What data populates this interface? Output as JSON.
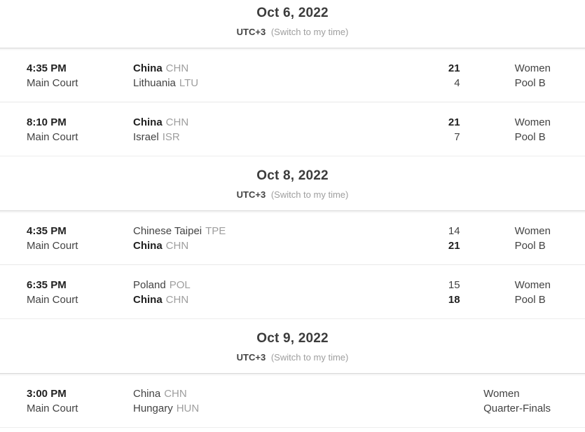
{
  "colors": {
    "text_primary": "#212121",
    "text_secondary": "#424242",
    "text_muted": "#9e9e9e",
    "divider": "#e0e0e0"
  },
  "sections": [
    {
      "date": "Oct 6, 2022",
      "timezone": "UTC+3",
      "switch_time_label": "(Switch to my time)",
      "matches": [
        {
          "time": "4:35 PM",
          "venue": "Main Court",
          "team1": {
            "name": "China",
            "code": "CHN",
            "score": "21",
            "winner": true
          },
          "team2": {
            "name": "Lithuania",
            "code": "LTU",
            "score": "4",
            "winner": false
          },
          "gender": "Women",
          "round": "Pool B"
        },
        {
          "time": "8:10 PM",
          "venue": "Main Court",
          "team1": {
            "name": "China",
            "code": "CHN",
            "score": "21",
            "winner": true
          },
          "team2": {
            "name": "Israel",
            "code": "ISR",
            "score": "7",
            "winner": false
          },
          "gender": "Women",
          "round": "Pool B"
        }
      ]
    },
    {
      "date": "Oct 8, 2022",
      "timezone": "UTC+3",
      "switch_time_label": "(Switch to my time)",
      "matches": [
        {
          "time": "4:35 PM",
          "venue": "Main Court",
          "team1": {
            "name": "Chinese Taipei",
            "code": "TPE",
            "score": "14",
            "winner": false
          },
          "team2": {
            "name": "China",
            "code": "CHN",
            "score": "21",
            "winner": true
          },
          "gender": "Women",
          "round": "Pool B"
        },
        {
          "time": "6:35 PM",
          "venue": "Main Court",
          "team1": {
            "name": "Poland",
            "code": "POL",
            "score": "15",
            "winner": false
          },
          "team2": {
            "name": "China",
            "code": "CHN",
            "score": "18",
            "winner": true
          },
          "gender": "Women",
          "round": "Pool B"
        }
      ]
    },
    {
      "date": "Oct 9, 2022",
      "timezone": "UTC+3",
      "switch_time_label": "(Switch to my time)",
      "matches": [
        {
          "time": "3:00 PM",
          "venue": "Main Court",
          "team1": {
            "name": "China",
            "code": "CHN"
          },
          "team2": {
            "name": "Hungary",
            "code": "HUN"
          },
          "gender": "Women",
          "round": "Quarter-Finals"
        }
      ]
    }
  ]
}
